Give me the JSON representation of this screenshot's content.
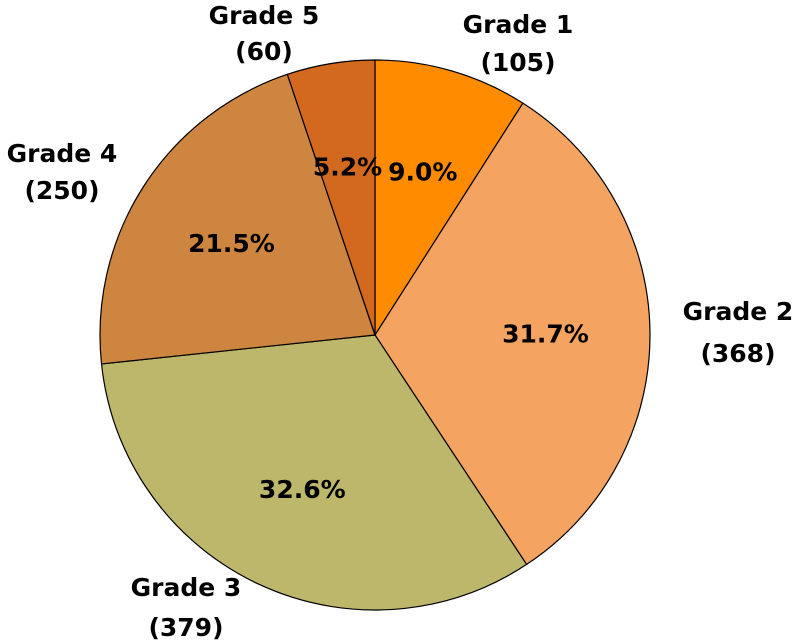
{
  "chart_data": {
    "type": "pie",
    "title": "",
    "start_angle_deg": 0,
    "direction": "clockwise",
    "slices": [
      {
        "name": "Grade 1",
        "count_label": "(105)",
        "value": 105,
        "percent_label": "9.0%",
        "color": "#FF8C00"
      },
      {
        "name": "Grade 2",
        "count_label": "(368)",
        "value": 368,
        "percent_label": "31.7%",
        "color": "#F4A460"
      },
      {
        "name": "Grade 3",
        "count_label": "(379)",
        "value": 379,
        "percent_label": "32.6%",
        "color": "#BDB76B"
      },
      {
        "name": "Grade 4",
        "count_label": "(250)",
        "value": 250,
        "percent_label": "21.5%",
        "color": "#CD853F"
      },
      {
        "name": "Grade 5",
        "count_label": "(60)",
        "value": 60,
        "percent_label": "5.2%",
        "color": "#D2691E"
      }
    ]
  }
}
